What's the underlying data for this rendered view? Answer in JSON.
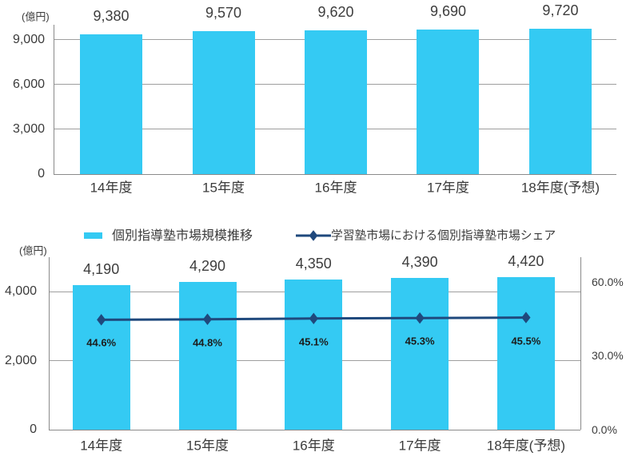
{
  "colors": {
    "background": "#ffffff",
    "bar": "#34caf3",
    "line": "#1f497d",
    "marker": "#1f497d",
    "grid": "#9e9e9e",
    "axis": "#8a8a8a",
    "tick_text": "#3b3b3b",
    "value_label_text": "#3d3d3d",
    "percent_label_text": "#1c1c1c",
    "legend_text": "#3b3b3b"
  },
  "legend": {
    "items": [
      {
        "marker": "bar-swatch",
        "label": "個別指導塾市場規模推移"
      },
      {
        "marker": "line-swatch",
        "label": "学習塾市場における個別指導塾市場シェア"
      }
    ]
  },
  "chart_data": [
    {
      "type": "bar",
      "title": "",
      "unit_label": "(億円)",
      "categories": [
        "14年度",
        "15年度",
        "16年度",
        "17年度",
        "18年度(予想)"
      ],
      "values": [
        9380,
        9570,
        9620,
        9690,
        9720
      ],
      "value_labels": [
        "9,380",
        "9,570",
        "9,620",
        "9,690",
        "9,720"
      ],
      "ylabel": "(億円)",
      "xlabel": "",
      "ylim": [
        0,
        10000
      ],
      "yticks": [
        {
          "value": 0,
          "label": "0"
        },
        {
          "value": 3000,
          "label": "3,000"
        },
        {
          "value": 6000,
          "label": "6,000"
        },
        {
          "value": 9000,
          "label": "9,000"
        }
      ],
      "grid": true,
      "legend_position": "none"
    },
    {
      "type": "bar+line",
      "title": "",
      "unit_label": "(億円)",
      "categories": [
        "14年度",
        "15年度",
        "16年度",
        "17年度",
        "18年度(予想)"
      ],
      "series": [
        {
          "name": "個別指導塾市場規模推移",
          "type": "bar",
          "axis": "left",
          "values": [
            4190,
            4290,
            4350,
            4390,
            4420
          ],
          "value_labels": [
            "4,190",
            "4,290",
            "4,350",
            "4,390",
            "4,420"
          ]
        },
        {
          "name": "学習塾市場における個別指導塾市場シェア",
          "type": "line",
          "axis": "right",
          "values": [
            44.6,
            44.8,
            45.1,
            45.3,
            45.5
          ],
          "value_labels": [
            "44.6%",
            "44.8%",
            "45.1%",
            "45.3%",
            "45.5%"
          ]
        }
      ],
      "left_axis": {
        "lim": [
          0,
          5000
        ],
        "ticks": [
          {
            "value": 0,
            "label": "0"
          },
          {
            "value": 2000,
            "label": "2,000"
          },
          {
            "value": 4000,
            "label": "4,000"
          }
        ]
      },
      "right_axis": {
        "lim": [
          0,
          70
        ],
        "ticks": [
          {
            "value": 0,
            "label": "0.0%"
          },
          {
            "value": 30,
            "label": "30.0%"
          },
          {
            "value": 60,
            "label": "60.0%"
          }
        ]
      },
      "grid": true,
      "legend_position": "top"
    }
  ]
}
